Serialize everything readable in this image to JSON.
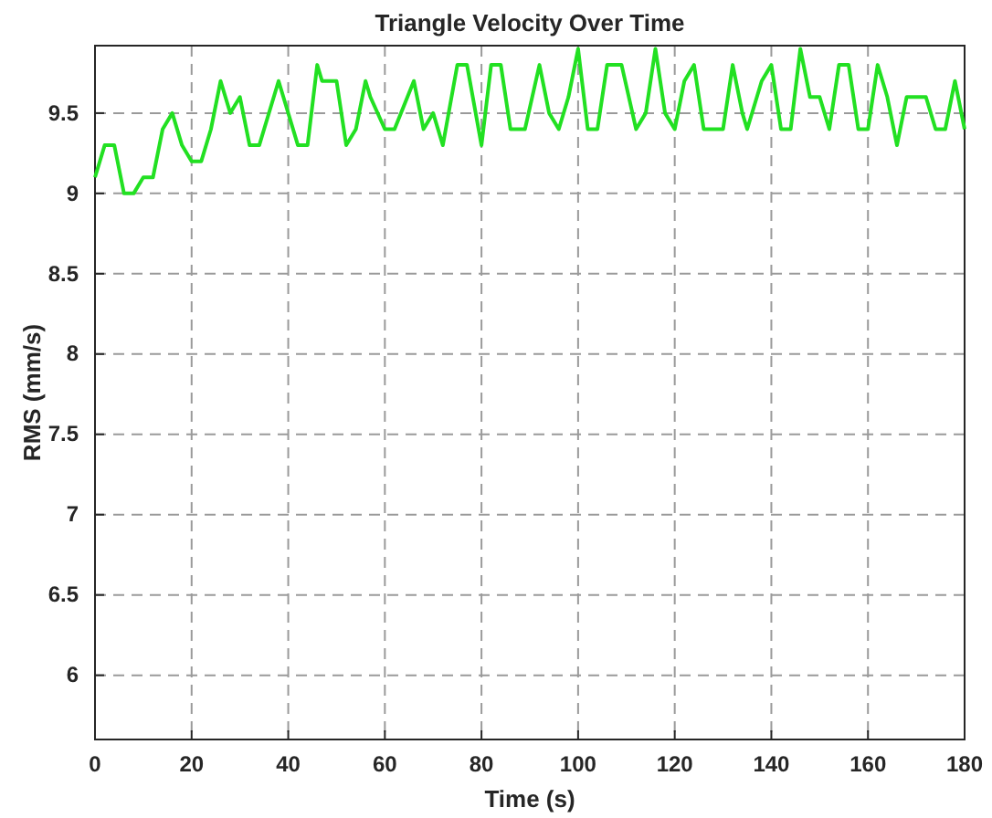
{
  "chart_data": {
    "type": "line",
    "title": "Triangle Velocity Over Time",
    "xlabel": "Time (s)",
    "ylabel": "RMS (mm/s)",
    "x": [
      0,
      2,
      4,
      6,
      8,
      10,
      12,
      14,
      16,
      18,
      20,
      22,
      24,
      26,
      28,
      30,
      32,
      34,
      38,
      42,
      44,
      46,
      47,
      50,
      52,
      54,
      56,
      57,
      60,
      62,
      66,
      68,
      70,
      72,
      75,
      77,
      80,
      82,
      84,
      86,
      89,
      92,
      94,
      96,
      98,
      100,
      102,
      104,
      106,
      109,
      112,
      114,
      116,
      118,
      120,
      122,
      124,
      126,
      130,
      132,
      134,
      135,
      138,
      140,
      142,
      144,
      146,
      148,
      150,
      152,
      154,
      156,
      158,
      160,
      162,
      164,
      166,
      168,
      172,
      174,
      176,
      178,
      180
    ],
    "series": [
      {
        "color": "#22e022",
        "values": [
          9.1,
          9.3,
          9.3,
          9.0,
          9.0,
          9.1,
          9.1,
          9.4,
          9.5,
          9.3,
          9.2,
          9.2,
          9.4,
          9.7,
          9.5,
          9.6,
          9.3,
          9.3,
          9.7,
          9.3,
          9.3,
          9.8,
          9.7,
          9.7,
          9.3,
          9.4,
          9.7,
          9.6,
          9.4,
          9.4,
          9.7,
          9.4,
          9.5,
          9.3,
          9.8,
          9.8,
          9.3,
          9.8,
          9.8,
          9.4,
          9.4,
          9.8,
          9.5,
          9.4,
          9.6,
          9.9,
          9.4,
          9.4,
          9.8,
          9.8,
          9.4,
          9.5,
          9.9,
          9.5,
          9.4,
          9.7,
          9.8,
          9.4,
          9.4,
          9.8,
          9.5,
          9.4,
          9.7,
          9.8,
          9.4,
          9.4,
          9.9,
          9.6,
          9.6,
          9.4,
          9.8,
          9.8,
          9.4,
          9.4,
          9.8,
          9.6,
          9.3,
          9.6,
          9.6,
          9.4,
          9.4,
          9.7,
          9.4
        ]
      }
    ],
    "xlim": [
      0,
      180
    ],
    "xticks": [
      0,
      20,
      40,
      60,
      80,
      100,
      120,
      140,
      160,
      180
    ],
    "ylim": [
      5.6,
      9.92
    ],
    "yticks": [
      6,
      6.5,
      7,
      7.5,
      8,
      8.5,
      9,
      9.5
    ],
    "grid": true,
    "line_style": "solid",
    "marker": "none"
  }
}
